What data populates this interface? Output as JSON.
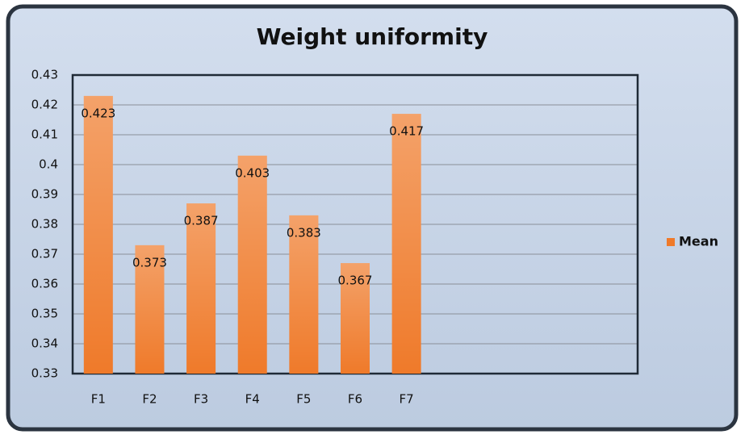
{
  "chart_data": {
    "type": "bar",
    "title": "Weight uniformity",
    "categories": [
      "F1",
      "F2",
      "F3",
      "F4",
      "F5",
      "F6",
      "F7",
      null,
      null,
      null,
      null
    ],
    "series": [
      {
        "name": "Mean",
        "color": "#ef7a2a",
        "values": [
          0.423,
          0.373,
          0.387,
          0.403,
          0.383,
          0.367,
          0.417,
          null,
          null,
          null,
          null
        ]
      }
    ],
    "ylim": [
      0.33,
      0.43
    ],
    "yticks": [
      0.33,
      0.34,
      0.35,
      0.36,
      0.37,
      0.38,
      0.39,
      0.4,
      0.41,
      0.42,
      0.43
    ],
    "grid": true,
    "legend": "right"
  }
}
